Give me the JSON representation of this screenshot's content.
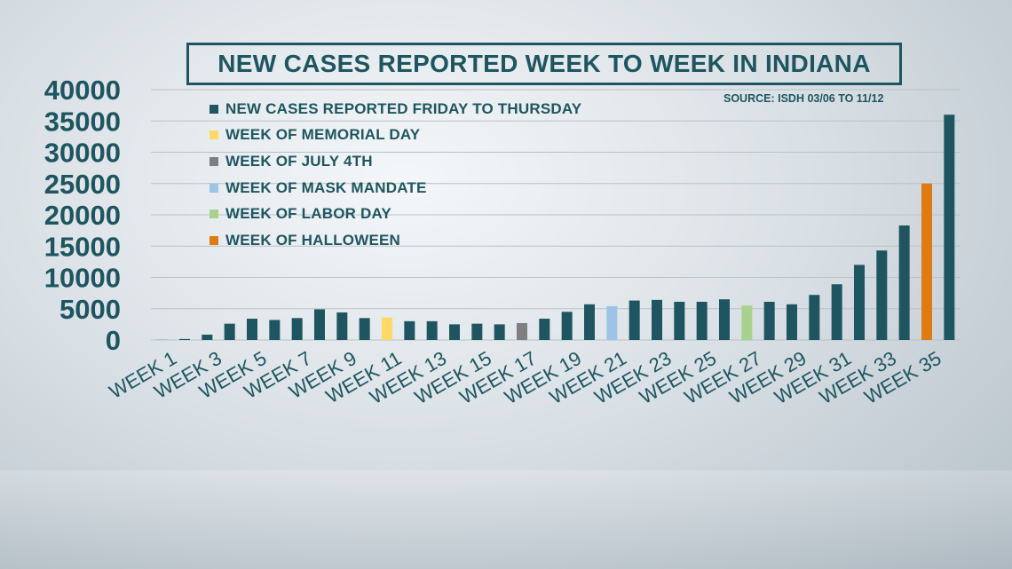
{
  "title": "NEW CASES REPORTED WEEK TO WEEK IN INDIANA",
  "source": "SOURCE: ISDH 03/06 TO 11/12",
  "legend": [
    {
      "label": "NEW CASES REPORTED FRIDAY TO THURSDAY",
      "color": "#1e5560"
    },
    {
      "label": "WEEK OF MEMORIAL DAY",
      "color": "#ffd966"
    },
    {
      "label": "WEEK OF JULY 4TH",
      "color": "#7f7f7f"
    },
    {
      "label": "WEEK OF MASK MANDATE",
      "color": "#9dc3e6"
    },
    {
      "label": "WEEK OF LABOR DAY",
      "color": "#a9d18e"
    },
    {
      "label": "WEEK OF HALLOWEEN",
      "color": "#e07b14"
    }
  ],
  "chart_data": {
    "type": "bar",
    "title": "NEW CASES REPORTED WEEK TO WEEK IN INDIANA",
    "xlabel": "",
    "ylabel": "",
    "ylim": [
      0,
      40000
    ],
    "yticks": [
      0,
      5000,
      10000,
      15000,
      20000,
      25000,
      30000,
      35000,
      40000
    ],
    "grid": true,
    "legend_position": "top-left",
    "x_tick_labels": [
      "WEEK 1",
      "WEEK 3",
      "WEEK 5",
      "WEEK 7",
      "WEEK 9",
      "WEEK 11",
      "WEEK 13",
      "WEEK 15",
      "WEEK 17",
      "WEEK 19",
      "WEEK 21",
      "WEEK 23",
      "WEEK 25",
      "WEEK 27",
      "WEEK 29",
      "WEEK 31",
      "WEEK 33",
      "WEEK 35"
    ],
    "categories": [
      "WEEK 1",
      "WEEK 2",
      "WEEK 3",
      "WEEK 4",
      "WEEK 5",
      "WEEK 6",
      "WEEK 7",
      "WEEK 8",
      "WEEK 9",
      "WEEK 10",
      "WEEK 11",
      "WEEK 12",
      "WEEK 13",
      "WEEK 14",
      "WEEK 15",
      "WEEK 16",
      "WEEK 17",
      "WEEK 18",
      "WEEK 19",
      "WEEK 20",
      "WEEK 21",
      "WEEK 22",
      "WEEK 23",
      "WEEK 24",
      "WEEK 25",
      "WEEK 26",
      "WEEK 27",
      "WEEK 28",
      "WEEK 29",
      "WEEK 30",
      "WEEK 31",
      "WEEK 32",
      "WEEK 33",
      "WEEK 34",
      "WEEK 35",
      "WEEK 36"
    ],
    "values": [
      20,
      160,
      850,
      2600,
      3400,
      3200,
      3500,
      4900,
      4400,
      3500,
      3600,
      3000,
      3000,
      2500,
      2600,
      2500,
      2700,
      3400,
      4500,
      5700,
      5400,
      6300,
      6400,
      6100,
      6100,
      6500,
      5500,
      6100,
      5700,
      7200,
      8900,
      12000,
      14300,
      18300,
      25000,
      36000
    ],
    "categories_highlight": {
      "WEEK OF MEMORIAL DAY": "WEEK 11",
      "WEEK OF JULY 4TH": "WEEK 17",
      "WEEK OF MASK MANDATE": "WEEK 21",
      "WEEK OF LABOR DAY": "WEEK 27",
      "WEEK OF HALLOWEEN": "WEEK 35"
    }
  }
}
